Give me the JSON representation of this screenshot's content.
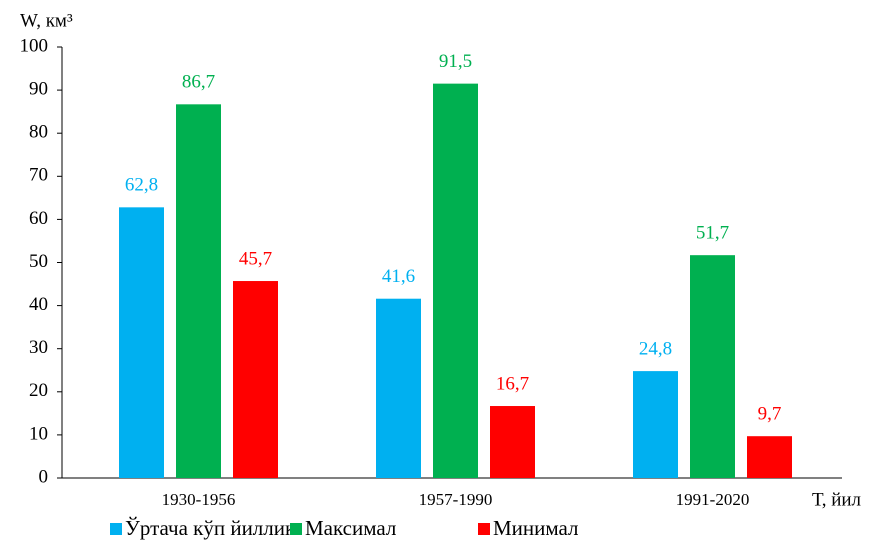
{
  "chart_data": {
    "type": "bar",
    "y_label": "W, км³",
    "x_label": "Т, йил",
    "categories": [
      "1930-1956",
      "1957-1990",
      "1991-2020"
    ],
    "series": [
      {
        "name": "Ўртача кўп йиллик",
        "color": "#00b0f0",
        "values": [
          62.8,
          41.6,
          24.8
        ],
        "value_labels": [
          "62,8",
          "41,6",
          "24,8"
        ]
      },
      {
        "name": "Максимал",
        "color": "#00b050",
        "values": [
          86.7,
          91.5,
          51.7
        ],
        "value_labels": [
          "86,7",
          "91,5",
          "51,7"
        ]
      },
      {
        "name": "Минимал",
        "color": "#ff0000",
        "values": [
          45.7,
          16.7,
          9.7
        ],
        "value_labels": [
          "45,7",
          "16,7",
          "9,7"
        ]
      }
    ],
    "ylim": [
      0,
      100
    ],
    "yticks": [
      0,
      10,
      20,
      30,
      40,
      50,
      60,
      70,
      80,
      90,
      100
    ],
    "grid": false,
    "legend": "bottom"
  }
}
